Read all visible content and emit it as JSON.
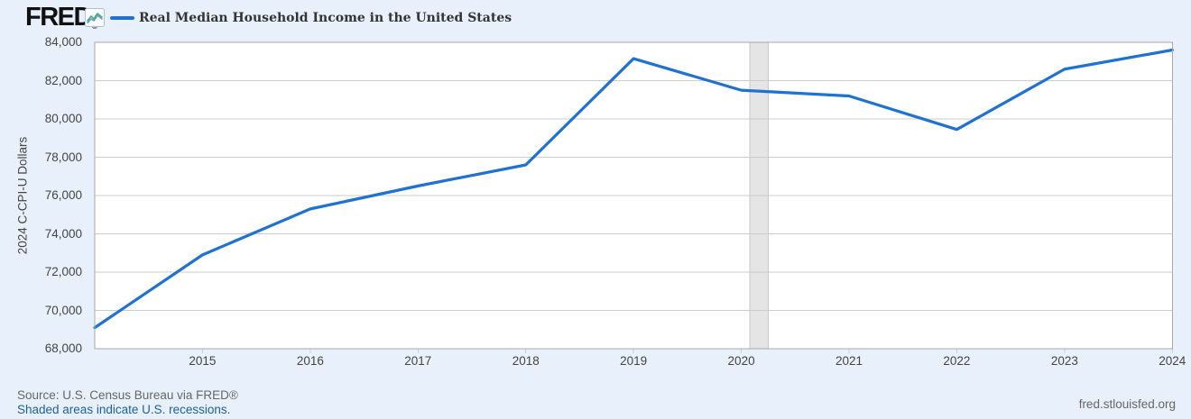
{
  "header": {
    "logo_text": "FRED",
    "registered_mark": "®",
    "chart_icon": "line-chart-icon"
  },
  "chart_data": {
    "type": "line",
    "title": "Real Median Household Income in the United States",
    "ylabel": "2024 C-CPI-U Dollars",
    "x": [
      2014,
      2015,
      2016,
      2017,
      2018,
      2019,
      2020,
      2021,
      2022,
      2023,
      2024
    ],
    "values": [
      69100,
      72900,
      75300,
      76500,
      77600,
      83150,
      81500,
      81200,
      79450,
      82600,
      83600
    ],
    "series_name": "Real Median Household Income in the United States",
    "xlim": [
      2014,
      2024
    ],
    "ylim": [
      68000,
      84000
    ],
    "ytick_step": 2000,
    "xticks": [
      2015,
      2016,
      2017,
      2018,
      2019,
      2020,
      2021,
      2022,
      2023,
      2024
    ],
    "grid": true,
    "legend_position": "top-left",
    "line_color": "#1f72d2",
    "recession_bands": [
      {
        "start": 2020.08,
        "end": 2020.25
      }
    ],
    "recession_fill": "#e5e5e5",
    "recession_edge": "#c9c9c9"
  },
  "footer": {
    "source_text": "Source: U.S. Census Bureau via FRED®",
    "recessions_note": "Shaded areas indicate U.S. recessions.",
    "site_link": "fred.stlouisfed.org"
  },
  "colors": {
    "page_bg": "#e8f1fb",
    "plot_bg": "#ffffff",
    "grid": "#cccccc",
    "plot_border": "#a8a8a8",
    "x_tick_stub": "#c3cfdb",
    "axis_text": "#444444",
    "title_text": "#333333",
    "source_text": "#666666",
    "link": "#1c5f9e"
  }
}
